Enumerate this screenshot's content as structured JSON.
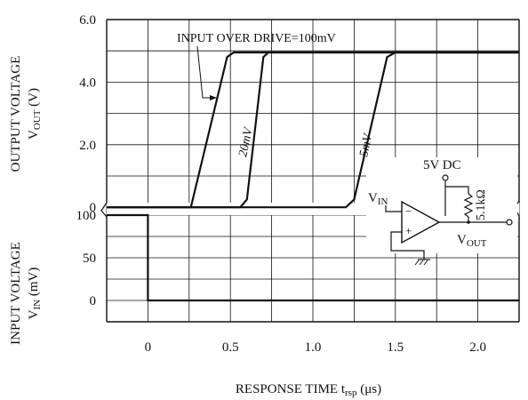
{
  "chart_data": [
    {
      "type": "line",
      "y_label_line1": "OUTPUT VOLTAGE",
      "y_label_line2_main": "V",
      "y_label_line2_sub": "OUT",
      "y_label_line2_unit": "(V)",
      "xlim": [
        -0.25,
        2.25
      ],
      "ylim": [
        -0.25,
        6.0
      ],
      "y_ticks": [
        {
          "value": 0,
          "label": "0"
        },
        {
          "value": 2,
          "label": "2.0"
        },
        {
          "value": 4,
          "label": "4.0"
        },
        {
          "value": 6,
          "label": "6.0"
        }
      ],
      "series": [
        {
          "name": "20mV",
          "x": [
            -0.25,
            0.26,
            0.48,
            0.52,
            2.25
          ],
          "y": [
            0,
            0,
            4.8,
            4.95,
            4.95
          ]
        },
        {
          "name": "5mV",
          "x": [
            -0.25,
            0.56,
            0.6,
            0.7,
            0.73,
            2.25
          ],
          "y": [
            0,
            0,
            0.25,
            4.8,
            4.95,
            4.95
          ]
        },
        {
          "name": "",
          "x": [
            -0.25,
            1.2,
            1.25,
            1.45,
            1.5,
            2.25
          ],
          "y": [
            0,
            0,
            0.25,
            4.8,
            4.95,
            4.95
          ]
        }
      ],
      "annotation": "INPUT OVER DRIVE=100mV",
      "curve_labels": [
        "20mV",
        "5mV"
      ],
      "grid": true
    },
    {
      "type": "line",
      "y_label_line1": "INPUT VOLTAGE",
      "y_label_line2_main": "V",
      "y_label_line2_sub": "IN",
      "y_label_line2_unit": "(mV)",
      "xlabel_main": "RESPONSE TIME t",
      "xlabel_sub": "rsp",
      "xlabel_unit": "(μs)",
      "xlim": [
        -0.25,
        2.25
      ],
      "ylim": [
        -25,
        100
      ],
      "x_ticks": [
        {
          "value": 0,
          "label": "0"
        },
        {
          "value": 0.5,
          "label": "0.5"
        },
        {
          "value": 1.0,
          "label": "1.0"
        },
        {
          "value": 1.5,
          "label": "1.5"
        },
        {
          "value": 2.0,
          "label": "2.0"
        }
      ],
      "y_ticks": [
        {
          "value": 0,
          "label": "0"
        },
        {
          "value": 50,
          "label": "50"
        },
        {
          "value": 100,
          "label": "100"
        }
      ],
      "series": [
        {
          "name": "",
          "x": [
            -0.25,
            0,
            0,
            2.25
          ],
          "y": [
            100,
            100,
            0,
            0
          ]
        }
      ],
      "grid": true
    }
  ],
  "circuit": {
    "supply_label": "5V DC",
    "resistor_label": "5.1kΩ",
    "vin_main": "V",
    "vin_sub": "IN",
    "vout_main": "V",
    "vout_sub": "OUT",
    "minus_sign": "−",
    "plus_sign": "+"
  }
}
